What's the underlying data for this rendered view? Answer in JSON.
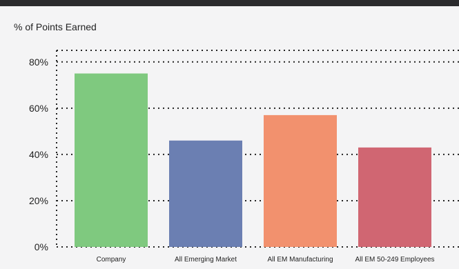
{
  "chart_data": {
    "type": "bar",
    "title": "% of Points Earned",
    "categories": [
      "Company",
      "All Emerging Market",
      "All EM Manufacturing",
      "All EM 50-249 Employees"
    ],
    "values": [
      75,
      46,
      57,
      43
    ],
    "colors": [
      "#7fc97f",
      "#6b7fb2",
      "#f2916e",
      "#d06672"
    ],
    "ylim": [
      0,
      85
    ],
    "yticks": [
      0,
      20,
      40,
      60,
      80
    ],
    "ytick_labels": [
      "0%",
      "20%",
      "40%",
      "60%",
      "80%"
    ],
    "grid": "dotted horizontal",
    "xlabel": "",
    "ylabel": ""
  }
}
